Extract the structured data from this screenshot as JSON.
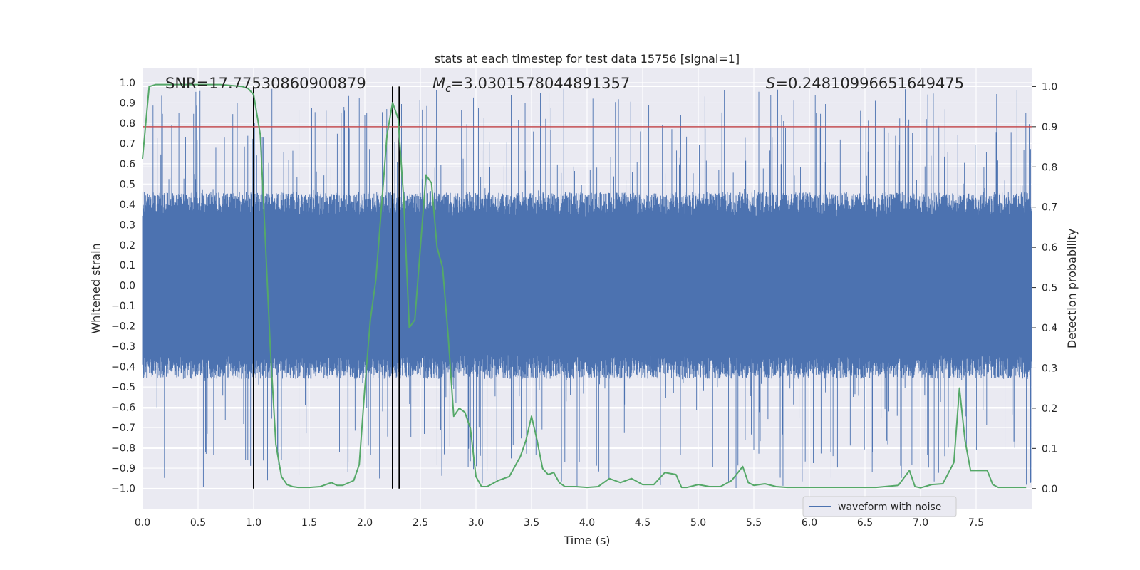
{
  "chart_data": {
    "type": "line",
    "title": "stats at each timestep for test data 15756 [signal=1]",
    "xlabel": "Time (s)",
    "ylabel_left": "Whitened strain",
    "ylabel_right": "Detection probability",
    "xlim": [
      0.0,
      8.0
    ],
    "ylim_left": [
      -1.1,
      1.07
    ],
    "ylim_right": [
      -0.05,
      1.045
    ],
    "x_ticks": [
      "0.0",
      "0.5",
      "1.0",
      "1.5",
      "2.0",
      "2.5",
      "3.0",
      "3.5",
      "4.0",
      "4.5",
      "5.0",
      "5.5",
      "6.0",
      "6.5",
      "7.0",
      "7.5"
    ],
    "y_ticks_left": [
      "1.0",
      "0.9",
      "0.8",
      "0.7",
      "0.6",
      "0.5",
      "0.4",
      "0.3",
      "0.2",
      "0.1",
      "0.0",
      "-0.1",
      "-0.2",
      "-0.3",
      "-0.4",
      "-0.5",
      "-0.6",
      "-0.7",
      "-0.8",
      "-0.9",
      "-1.0"
    ],
    "y_ticks_right": [
      "1.0",
      "0.9",
      "0.8",
      "0.7",
      "0.6",
      "0.5",
      "0.4",
      "0.3",
      "0.2",
      "0.1",
      "0.0"
    ],
    "grid": true,
    "annotations": {
      "snr": "SNR=17.77530860900879",
      "mc_symbol": "M",
      "mc_subscript": "c",
      "mc_value": "=3.0301578044891357",
      "s_symbol": "S",
      "s_value": "=0.24810996651649475"
    },
    "threshold": {
      "value": 0.9,
      "color": "#c44e52"
    },
    "vertical_markers": [
      1.0,
      2.25,
      2.31
    ],
    "series": [
      {
        "name": "waveform with noise",
        "axis": "left",
        "color": "#4c72b0",
        "description_stats": {
          "typical_envelope": 0.4,
          "peak_max": 0.97,
          "peak_min": -1.0
        }
      },
      {
        "axis": "right",
        "color": "#55a868",
        "x": [
          0.0,
          0.06,
          0.12,
          0.2,
          0.3,
          0.5,
          0.7,
          0.9,
          0.95,
          1.0,
          1.03,
          1.06,
          1.1,
          1.15,
          1.2,
          1.25,
          1.3,
          1.35,
          1.4,
          1.5,
          1.6,
          1.7,
          1.75,
          1.8,
          1.9,
          1.95,
          2.0,
          2.05,
          2.1,
          2.15,
          2.2,
          2.25,
          2.3,
          2.35,
          2.4,
          2.45,
          2.5,
          2.55,
          2.6,
          2.65,
          2.7,
          2.75,
          2.8,
          2.85,
          2.9,
          2.95,
          3.0,
          3.05,
          3.1,
          3.2,
          3.3,
          3.4,
          3.45,
          3.5,
          3.55,
          3.6,
          3.65,
          3.7,
          3.75,
          3.8,
          3.9,
          4.0,
          4.1,
          4.2,
          4.3,
          4.4,
          4.5,
          4.6,
          4.7,
          4.8,
          4.85,
          4.9,
          5.0,
          5.1,
          5.2,
          5.3,
          5.4,
          5.45,
          5.5,
          5.6,
          5.7,
          5.8,
          6.0,
          6.2,
          6.4,
          6.6,
          6.8,
          6.9,
          6.95,
          7.0,
          7.1,
          7.2,
          7.3,
          7.35,
          7.4,
          7.45,
          7.5,
          7.6,
          7.65,
          7.7,
          7.8,
          7.95
        ],
        "values": [
          0.82,
          1.0,
          1.005,
          1.005,
          1.005,
          1.005,
          1.005,
          1.0,
          0.995,
          0.98,
          0.93,
          0.88,
          0.65,
          0.35,
          0.11,
          0.03,
          0.01,
          0.005,
          0.003,
          0.003,
          0.005,
          0.015,
          0.008,
          0.008,
          0.02,
          0.06,
          0.25,
          0.42,
          0.52,
          0.7,
          0.88,
          0.96,
          0.92,
          0.72,
          0.4,
          0.42,
          0.6,
          0.78,
          0.76,
          0.6,
          0.55,
          0.38,
          0.18,
          0.2,
          0.19,
          0.15,
          0.03,
          0.005,
          0.005,
          0.02,
          0.03,
          0.08,
          0.12,
          0.18,
          0.12,
          0.05,
          0.035,
          0.04,
          0.015,
          0.005,
          0.005,
          0.003,
          0.005,
          0.025,
          0.015,
          0.025,
          0.01,
          0.01,
          0.04,
          0.035,
          0.003,
          0.003,
          0.01,
          0.005,
          0.005,
          0.02,
          0.055,
          0.015,
          0.008,
          0.012,
          0.005,
          0.003,
          0.003,
          0.003,
          0.003,
          0.003,
          0.008,
          0.045,
          0.005,
          0.002,
          0.01,
          0.012,
          0.065,
          0.25,
          0.12,
          0.045,
          0.045,
          0.045,
          0.01,
          0.003,
          0.003,
          0.003
        ]
      }
    ],
    "legend": {
      "position": "bottom-right"
    }
  }
}
